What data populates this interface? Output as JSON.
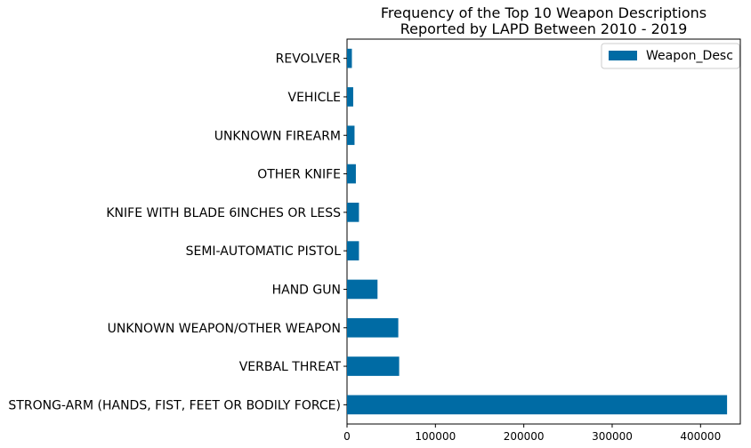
{
  "chart_data": {
    "type": "bar",
    "orientation": "horizontal",
    "title_lines": [
      "Frequency of the Top 10 Weapon Descriptions",
      "Reported by LAPD Between 2010 - 2019"
    ],
    "categories": [
      "STRONG-ARM (HANDS, FIST, FEET OR BODILY FORCE)",
      "VERBAL THREAT",
      "UNKNOWN WEAPON/OTHER WEAPON",
      "HAND GUN",
      "SEMI-AUTOMATIC PISTOL",
      "KNIFE WITH BLADE 6INCHES OR LESS",
      "OTHER KNIFE",
      "UNKNOWN FIREARM",
      "VEHICLE",
      "REVOLVER"
    ],
    "series": [
      {
        "name": "Weapon_Desc",
        "values": [
          430000,
          59000,
          58000,
          34500,
          13500,
          13500,
          10000,
          8500,
          7000,
          5500
        ]
      }
    ],
    "xlim": [
      0,
      445000
    ],
    "xticks": [
      0,
      100000,
      200000,
      300000,
      400000
    ],
    "xtick_labels": [
      "0",
      "100000",
      "200000",
      "300000",
      "400000"
    ],
    "legend_position": "top-right",
    "grid": false,
    "bar_color": "#006ba4"
  }
}
